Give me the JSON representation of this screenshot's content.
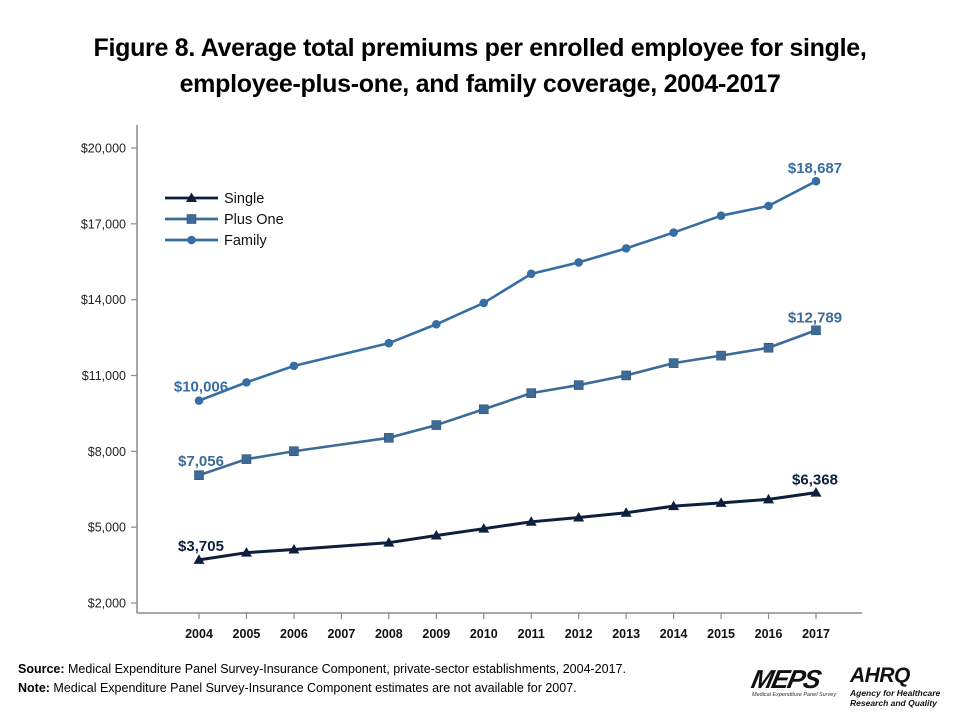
{
  "title_lines": [
    "Figure 8. Average total premiums per enrolled employee for single,",
    "employee-plus-one, and family coverage, 2004-2017"
  ],
  "chart_data": {
    "type": "line",
    "title": "Figure 8. Average total premiums per enrolled employee for single, employee-plus-one, and family coverage, 2004-2017",
    "xlabel": "",
    "ylabel": "",
    "x": [
      "2004",
      "2005",
      "2006",
      "2007",
      "2008",
      "2009",
      "2010",
      "2011",
      "2012",
      "2013",
      "2014",
      "2015",
      "2016",
      "2017"
    ],
    "ylim": [
      2000,
      20000
    ],
    "yticks": [
      2000,
      5000,
      8000,
      11000,
      14000,
      17000,
      20000
    ],
    "ytick_labels": [
      "$2,000",
      "$5,000",
      "$8,000",
      "$11,000",
      "$14,000",
      "$17,000",
      "$20,000"
    ],
    "grid": false,
    "legend_position": "top-left",
    "series": [
      {
        "name": "Single",
        "marker": "triangle",
        "color": "#0d1f3c",
        "values": [
          3705,
          3991,
          4118,
          null,
          4386,
          4669,
          4940,
          5212,
          5384,
          5571,
          5832,
          5963,
          6101,
          6368
        ],
        "labels": {
          "first": "$3,705",
          "last": "$6,368"
        }
      },
      {
        "name": "Plus One",
        "marker": "square",
        "color": "#3d6a96",
        "values": [
          7056,
          7691,
          8004,
          null,
          8535,
          9039,
          9664,
          10302,
          10621,
          11002,
          11490,
          11786,
          12098,
          12789
        ],
        "labels": {
          "first": "$7,056",
          "last": "$12,789"
        }
      },
      {
        "name": "Family",
        "marker": "circle",
        "color": "#366ea3",
        "values": [
          10006,
          10728,
          11381,
          null,
          12278,
          13027,
          13871,
          15022,
          15473,
          16029,
          16655,
          17322,
          17710,
          18687
        ],
        "labels": {
          "first": "$10,006",
          "last": "$18,687"
        }
      }
    ]
  },
  "footer": {
    "source_label": "Source:",
    "source_text": " Medical Expenditure Panel Survey-Insurance Component,  private-sector establishments, 2004-2017.",
    "note_label": "Note:",
    "note_text": " Medical Expenditure Panel Survey-Insurance Component  estimates are not available for 2007."
  },
  "logos": {
    "meps_word": "MEPS",
    "meps_sub": "Medical Expenditure Panel Survey",
    "ahrq_word": "AHRQ",
    "ahrq_sub1": "Agency for Healthcare",
    "ahrq_sub2": "Research and Quality"
  }
}
